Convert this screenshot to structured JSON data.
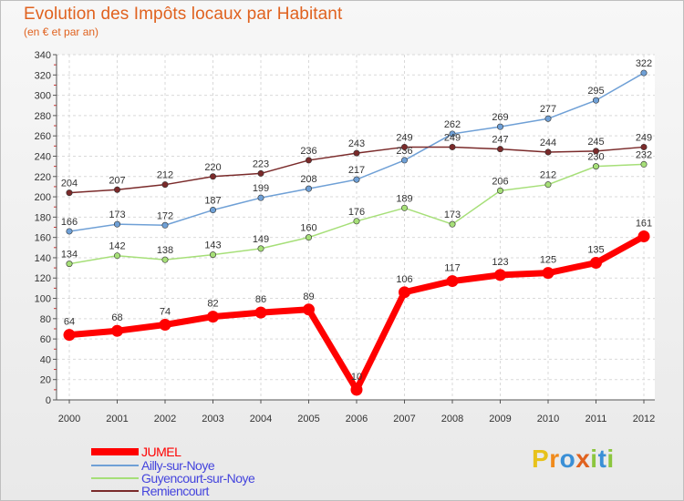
{
  "title": "Evolution des Impôts locaux par Habitant",
  "subtitle": "(en € et par an)",
  "brand": "Proxiti",
  "chart_data": {
    "type": "line",
    "title": "Evolution des Impôts locaux par Habitant",
    "subtitle": "(en € et par an)",
    "xlabel": "",
    "ylabel": "",
    "x": [
      "2000",
      "2001",
      "2002",
      "2003",
      "2004",
      "2005",
      "2006",
      "2007",
      "2008",
      "2009",
      "2010",
      "2011",
      "2012"
    ],
    "ylim": [
      0,
      340
    ],
    "yticks": [
      0,
      20,
      40,
      60,
      80,
      100,
      120,
      140,
      160,
      180,
      200,
      220,
      240,
      260,
      280,
      300,
      320,
      340
    ],
    "grid": true,
    "legend_position": "bottom-left",
    "series": [
      {
        "name": "JUMEL",
        "color": "#ff0000",
        "values": [
          64,
          68,
          74,
          82,
          86,
          89,
          10,
          106,
          117,
          123,
          125,
          135,
          161
        ]
      },
      {
        "name": "Ailly-sur-Noye",
        "color": "#6fa0d6",
        "values": [
          166,
          173,
          172,
          187,
          199,
          208,
          217,
          236,
          262,
          269,
          277,
          295,
          322
        ]
      },
      {
        "name": "Guyencourt-sur-Noye",
        "color": "#a6df78",
        "values": [
          134,
          142,
          138,
          143,
          149,
          160,
          176,
          189,
          173,
          206,
          212,
          230,
          232
        ]
      },
      {
        "name": "Remiencourt",
        "color": "#7a2a2a",
        "values": [
          204,
          207,
          212,
          220,
          223,
          236,
          243,
          249,
          249,
          247,
          244,
          245,
          249
        ]
      }
    ]
  }
}
